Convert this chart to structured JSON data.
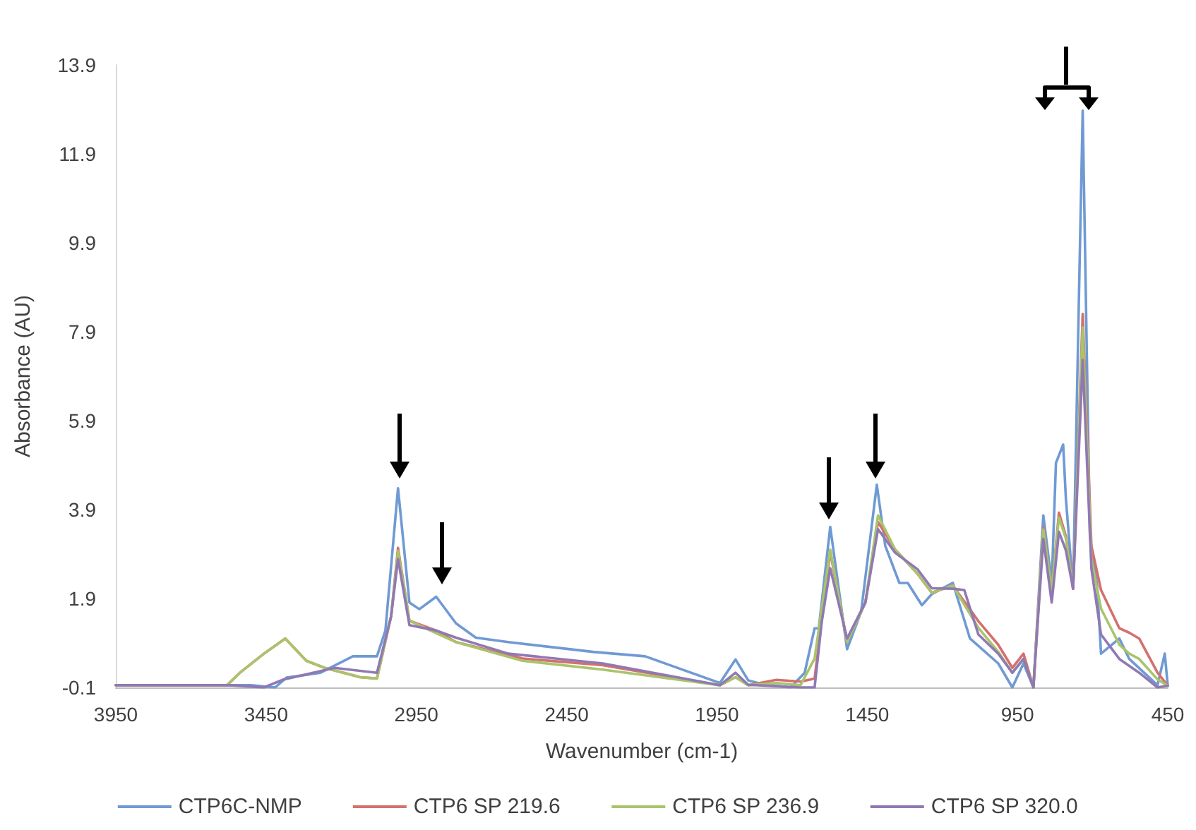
{
  "chart_data": {
    "type": "line",
    "xlabel": "Wavenumber (cm-1)",
    "ylabel": "Absorbance (AU)",
    "xlim": [
      3950,
      450
    ],
    "xticks": [
      3950,
      3450,
      2950,
      2450,
      1950,
      1450,
      950,
      450
    ],
    "ylim": [
      -0.1,
      13.9
    ],
    "yticks": [
      -0.1,
      1.9,
      3.9,
      5.9,
      7.9,
      9.9,
      11.9,
      13.9
    ],
    "grid": false,
    "legend": "bottom",
    "marker": "none",
    "line_style": "solid",
    "series": [
      {
        "name": "CTP6C-NMP",
        "color": "#6f9ad3",
        "x": [
          3950,
          3700,
          3500,
          3420,
          3382,
          3269,
          3161,
          3081,
          3053,
          3011,
          2973,
          2940,
          2884,
          2818,
          2752,
          2644,
          2362,
          2189,
          1940,
          1888,
          1846,
          1799,
          1705,
          1658,
          1625,
          1611,
          1573,
          1517,
          1470,
          1418,
          1390,
          1343,
          1315,
          1268,
          1235,
          1165,
          1108,
          1014,
          967,
          930,
          897,
          864,
          836,
          822,
          798,
          789,
          765,
          733,
          709,
          685,
          672,
          611,
          578,
          484,
          460,
          450
        ],
        "values": [
          -0.05,
          -0.05,
          -0.05,
          -0.1,
          0.12,
          0.23,
          0.6,
          0.6,
          1.18,
          4.38,
          1.81,
          1.66,
          1.94,
          1.34,
          1.02,
          0.92,
          0.7,
          0.6,
          0.0,
          0.53,
          0.06,
          -0.03,
          -0.1,
          0.23,
          1.23,
          1.23,
          3.51,
          0.76,
          1.61,
          4.46,
          3.09,
          2.25,
          2.25,
          1.75,
          2.0,
          2.25,
          1.0,
          0.44,
          -0.1,
          0.44,
          -0.1,
          3.77,
          2.25,
          4.95,
          5.36,
          4.15,
          2.12,
          12.87,
          3.3,
          2.19,
          0.66,
          1.0,
          0.54,
          -0.05,
          0.66,
          -0.06
        ]
      },
      {
        "name": "CTP6 SP 219.6",
        "color": "#d4706e",
        "x": [
          3950,
          3580,
          3537,
          3457,
          3386,
          3316,
          3255,
          3137,
          3081,
          3034,
          3011,
          2973,
          2884,
          2818,
          2597,
          2330,
          1940,
          1888,
          1846,
          1752,
          1672,
          1625,
          1573,
          1517,
          1456,
          1414,
          1357,
          1283,
          1235,
          1165,
          1080,
          1014,
          967,
          930,
          897,
          864,
          836,
          812,
          789,
          765,
          733,
          704,
          672,
          611,
          578,
          545,
          484,
          450
        ],
        "values": [
          -0.05,
          -0.05,
          0.23,
          0.66,
          1.0,
          0.5,
          0.34,
          0.13,
          0.1,
          1.5,
          3.04,
          1.4,
          1.18,
          0.92,
          0.55,
          0.4,
          -0.05,
          0.13,
          -0.05,
          0.07,
          0.03,
          0.1,
          2.95,
          0.92,
          1.81,
          3.62,
          3.0,
          2.46,
          2.03,
          2.19,
          1.39,
          0.86,
          0.34,
          0.66,
          -0.1,
          3.5,
          2.09,
          3.83,
          3.3,
          2.12,
          8.3,
          3.08,
          2.09,
          1.23,
          1.13,
          1.0,
          0.23,
          -0.06
        ]
      },
      {
        "name": "CTP6 SP 236.9",
        "color": "#a9c46b",
        "x": [
          3950,
          3580,
          3537,
          3457,
          3386,
          3316,
          3255,
          3137,
          3081,
          3034,
          3011,
          2973,
          2884,
          2818,
          2597,
          2330,
          1940,
          1888,
          1846,
          1752,
          1672,
          1625,
          1573,
          1517,
          1456,
          1414,
          1357,
          1283,
          1235,
          1165,
          1080,
          1014,
          967,
          930,
          897,
          864,
          836,
          812,
          789,
          765,
          733,
          704,
          672,
          611,
          578,
          545,
          484,
          450
        ],
        "values": [
          -0.05,
          -0.05,
          0.23,
          0.66,
          1.0,
          0.5,
          0.34,
          0.13,
          0.1,
          1.5,
          2.97,
          1.4,
          1.12,
          0.92,
          0.5,
          0.3,
          -0.05,
          0.13,
          -0.05,
          0.0,
          -0.05,
          0.55,
          3.0,
          0.92,
          1.81,
          3.77,
          3.0,
          2.46,
          2.03,
          2.19,
          1.24,
          0.7,
          0.23,
          0.54,
          -0.1,
          3.45,
          2.09,
          3.72,
          3.25,
          2.12,
          8.0,
          2.77,
          1.67,
          0.86,
          0.66,
          0.54,
          0.08,
          -0.06
        ]
      },
      {
        "name": "CTP6 SP 320.0",
        "color": "#9079b3",
        "x": [
          3950,
          3570,
          3457,
          3396,
          3222,
          3081,
          3034,
          3011,
          2973,
          2884,
          2818,
          2644,
          2330,
          1940,
          1888,
          1846,
          1672,
          1625,
          1601,
          1573,
          1517,
          1456,
          1414,
          1357,
          1283,
          1235,
          1165,
          1127,
          1080,
          1014,
          967,
          930,
          897,
          864,
          836,
          812,
          789,
          765,
          733,
          704,
          672,
          611,
          545,
          484,
          450
        ],
        "values": [
          -0.05,
          -0.05,
          -0.1,
          0.07,
          0.34,
          0.23,
          1.5,
          2.79,
          1.3,
          1.18,
          1.02,
          0.66,
          0.44,
          -0.05,
          0.23,
          -0.04,
          -0.1,
          -0.1,
          1.39,
          2.58,
          1.0,
          1.81,
          3.46,
          2.93,
          2.56,
          2.13,
          2.12,
          2.09,
          1.09,
          0.66,
          0.23,
          0.54,
          -0.1,
          3.24,
          1.81,
          3.4,
          2.98,
          2.12,
          7.27,
          2.57,
          1.09,
          0.54,
          0.23,
          -0.1,
          -0.06
        ]
      }
    ]
  }
}
